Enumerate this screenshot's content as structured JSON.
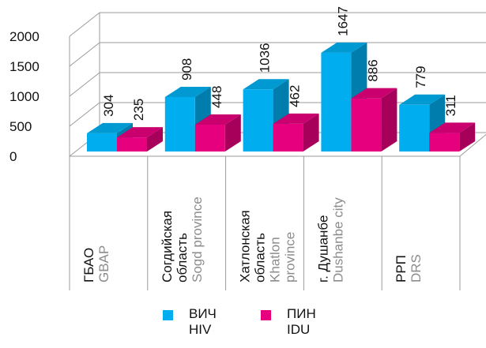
{
  "chart_data": {
    "type": "bar",
    "categories": [
      {
        "ru": [
          "ГБАО"
        ],
        "en": [
          "GBAP"
        ]
      },
      {
        "ru": [
          "Согдийская",
          "область"
        ],
        "en": [
          "Sogd province"
        ]
      },
      {
        "ru": [
          "Хатлонская",
          "область"
        ],
        "en": [
          "Khatlon",
          "province"
        ]
      },
      {
        "ru": [
          "г. Душанбе"
        ],
        "en": [
          "Dushanbe city"
        ]
      },
      {
        "ru": [
          "РРП"
        ],
        "en": [
          "DRS"
        ]
      }
    ],
    "series": [
      {
        "name_ru": "ВИЧ",
        "name_en": "HIV",
        "color": "#00aeef",
        "values": [
          304,
          908,
          1036,
          1647,
          779
        ]
      },
      {
        "name_ru": "ПИН",
        "name_en": "IDU",
        "color": "#e6007e",
        "values": [
          235,
          448,
          462,
          886,
          311
        ]
      }
    ],
    "yticks": [
      "0",
      "500",
      "1000",
      "1500",
      "2000"
    ],
    "ylim": [
      0,
      2000
    ],
    "grid": true,
    "legend": "bottom"
  }
}
